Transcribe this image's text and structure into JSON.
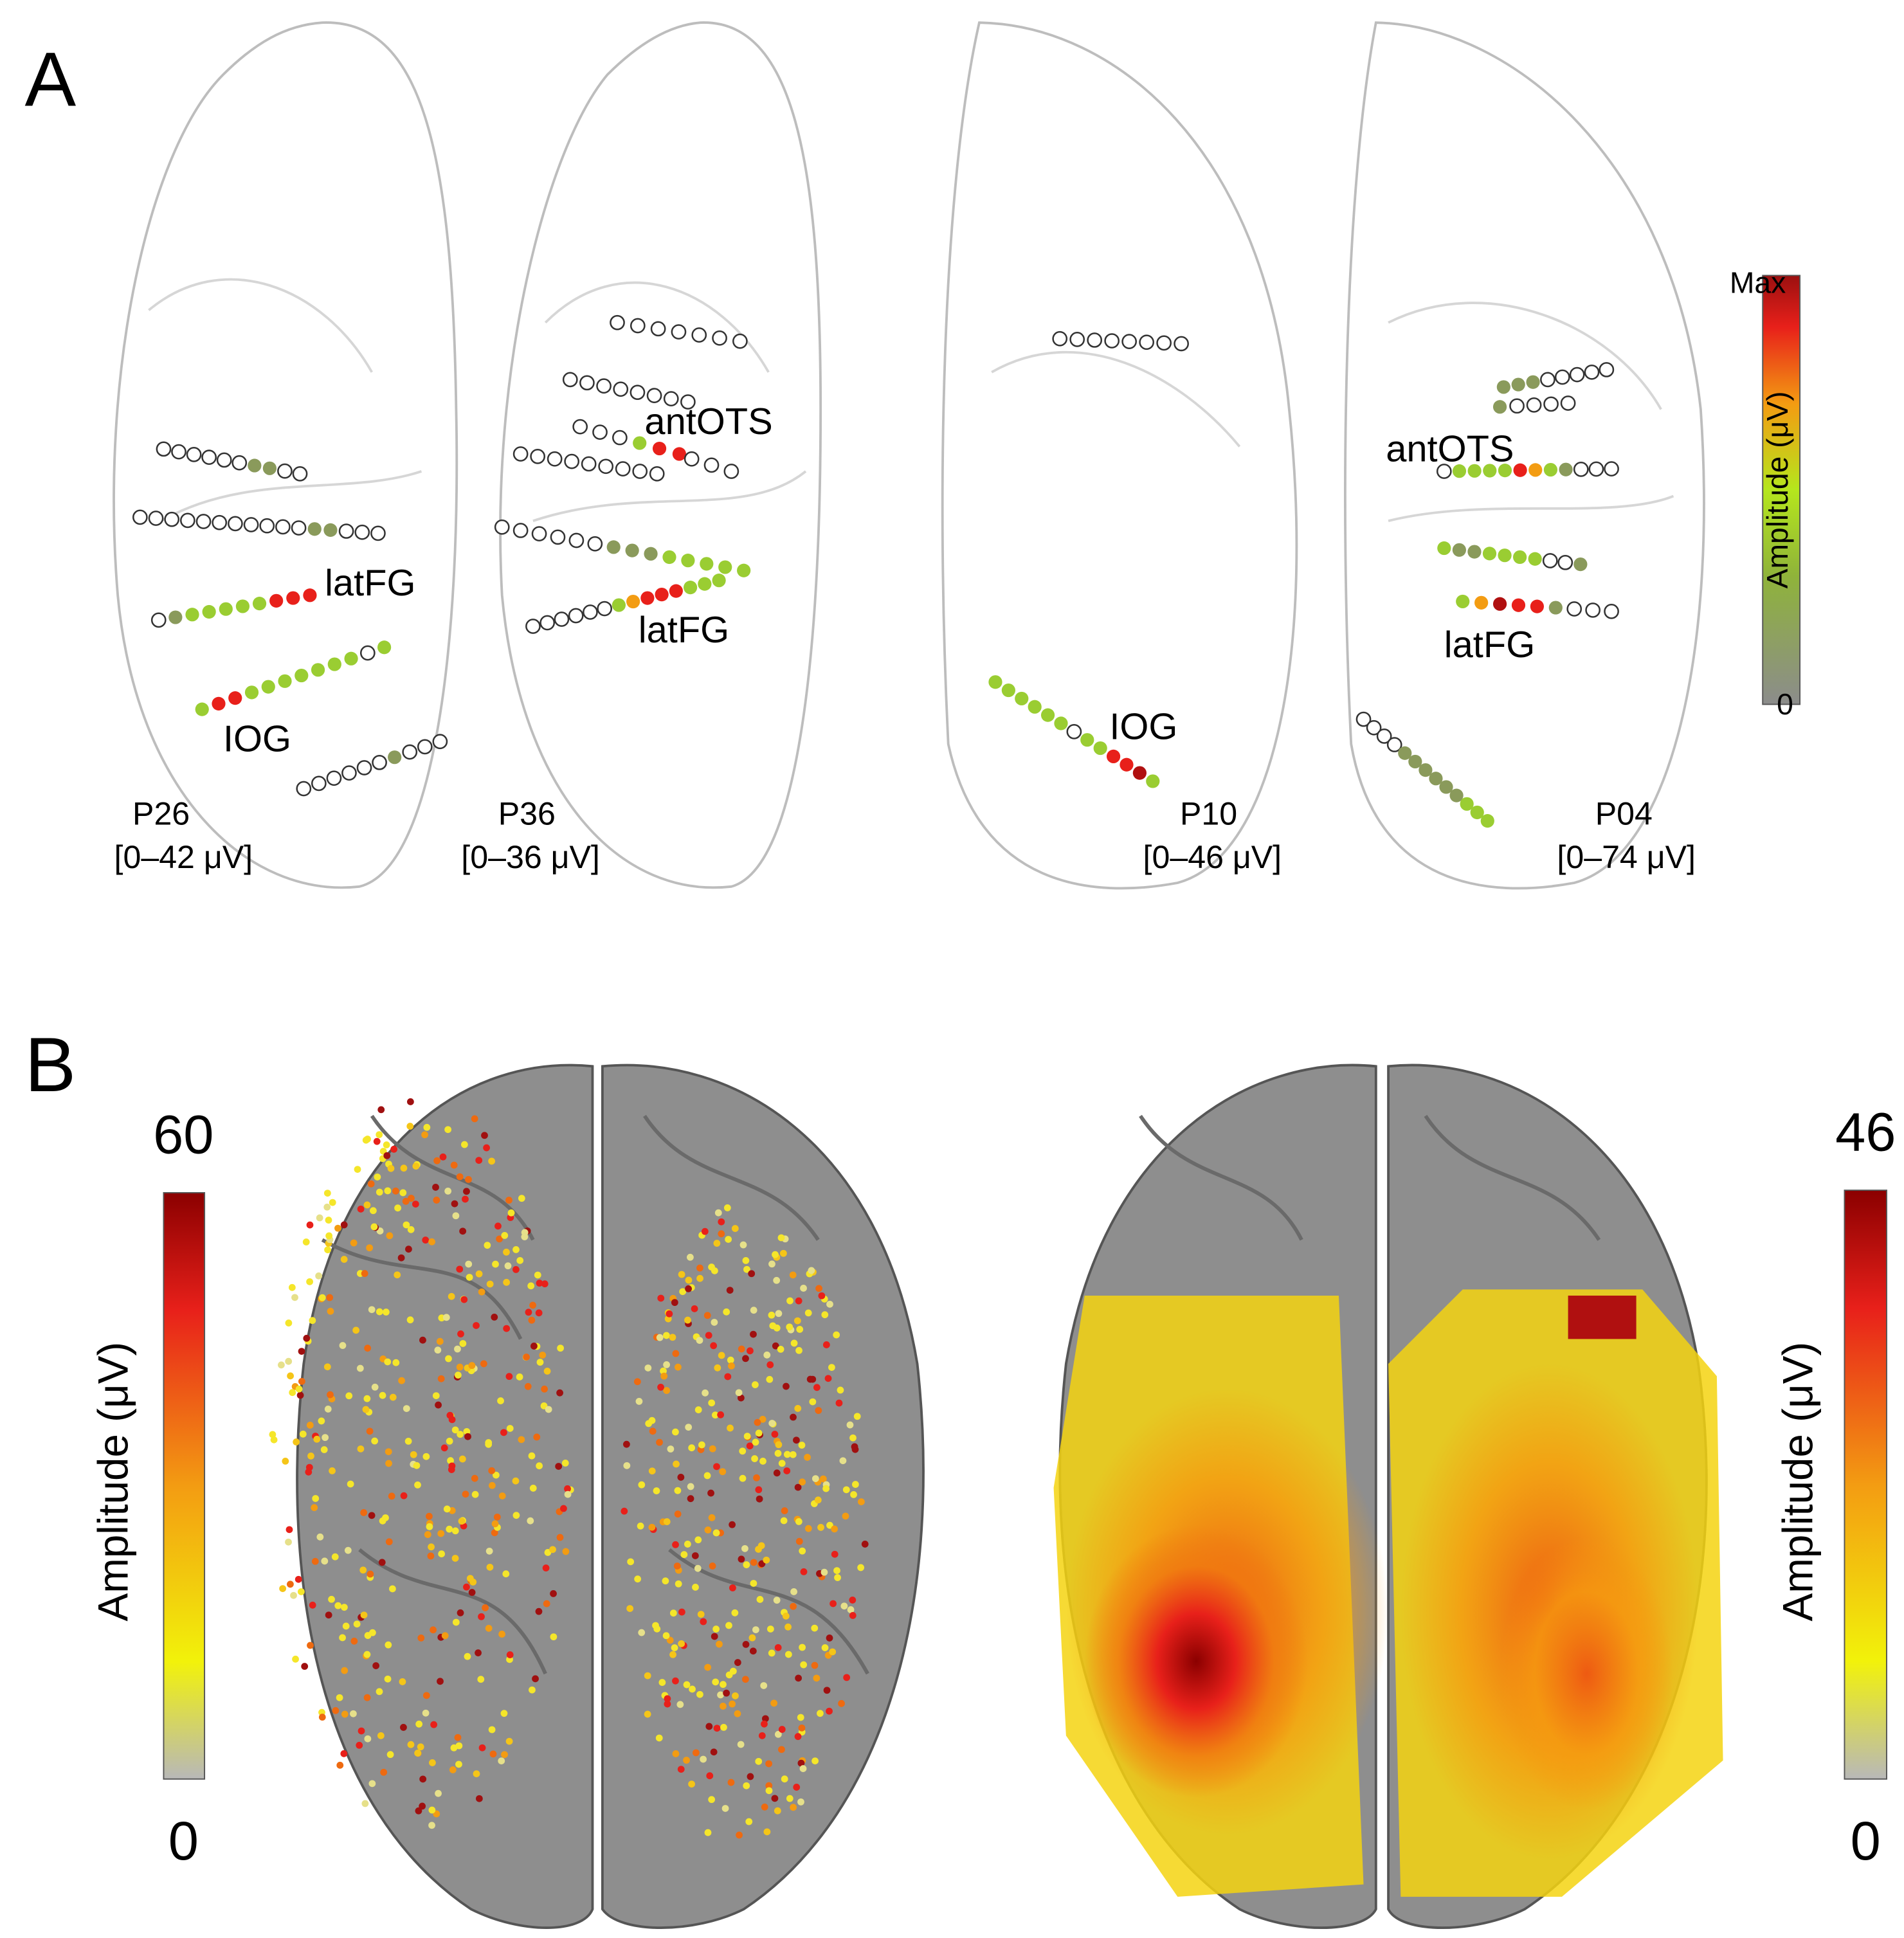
{
  "panel_a": {
    "label": "A",
    "subjects": [
      {
        "id": "P26",
        "range": "[0–42 μV]"
      },
      {
        "id": "P36",
        "range": "[0–36 μV]"
      },
      {
        "id": "P10",
        "range": "[0–46 μV]"
      },
      {
        "id": "P04",
        "range": "[0–74 μV]"
      }
    ],
    "regions": [
      "latFG",
      "IOG",
      "antOTS",
      "latFG",
      "IOG",
      "antOTS",
      "latFG"
    ],
    "colorbar": {
      "max": "Max",
      "min": 0,
      "title": "Amplitude (μV)"
    }
  },
  "panel_b": {
    "label": "B",
    "colorbar_left": {
      "max": 60,
      "min": 0,
      "title": "Amplitude (μV)"
    },
    "colorbar_right": {
      "max": 46,
      "min": 0,
      "title": "Amplitude (μV)"
    }
  }
}
